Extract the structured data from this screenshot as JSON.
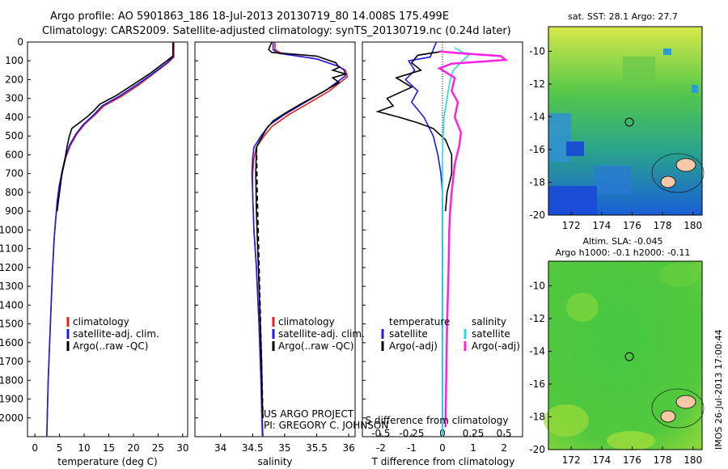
{
  "title_line1": "Argo profile: AO 5901863_186 18-Jul-2013 20130719_80 14.008S 175.499E",
  "title_line2": "Climatology: CARS2009. Satellite-adjusted climatology: synTS_20130719.nc (0.24d later)",
  "colors": {
    "red": "#e02020",
    "blue": "#1a1ae6",
    "black": "#000000",
    "magenta": "#ff20e0",
    "cyan": "#22dddd"
  },
  "chart_data": [
    {
      "type": "line",
      "name": "temperature-profile",
      "xlabel": "temperature (deg C)",
      "ylabel": "",
      "xlim": [
        -1.5,
        31
      ],
      "ylim": [
        2100,
        0
      ],
      "xticks": [
        "0",
        "5",
        "10",
        "15",
        "20",
        "25",
        "30"
      ],
      "xtick_values": [
        0,
        5,
        10,
        15,
        20,
        25,
        30
      ],
      "yticks": [
        "0",
        "100",
        "200",
        "300",
        "400",
        "500",
        "600",
        "700",
        "800",
        "900",
        "1000",
        "1100",
        "1200",
        "1300",
        "1400",
        "1500",
        "1600",
        "1700",
        "1800",
        "1900",
        "2000"
      ],
      "ytick_values": [
        0,
        100,
        200,
        300,
        400,
        500,
        600,
        700,
        800,
        900,
        1000,
        1100,
        1200,
        1300,
        1400,
        1500,
        1600,
        1700,
        1800,
        1900,
        2000
      ],
      "legend": [
        "climatology",
        "satellite-adj. clim.",
        "Argo(..raw -QC)"
      ],
      "series": [
        {
          "name": "climatology",
          "color": "red",
          "points": [
            [
              28.2,
              0
            ],
            [
              28.2,
              80
            ],
            [
              27,
              110
            ],
            [
              24,
              170
            ],
            [
              21,
              230
            ],
            [
              17.5,
              290
            ],
            [
              14,
              340
            ],
            [
              12.5,
              380
            ],
            [
              10,
              440
            ],
            [
              8.5,
              490
            ],
            [
              7.2,
              550
            ],
            [
              6.2,
              620
            ],
            [
              5.6,
              690
            ],
            [
              5,
              770
            ],
            [
              4.6,
              850
            ],
            [
              4.2,
              950
            ],
            [
              3.9,
              1050
            ],
            [
              3.6,
              1200
            ],
            [
              3.3,
              1400
            ],
            [
              3.0,
              1600
            ],
            [
              2.7,
              1800
            ],
            [
              2.5,
              2000
            ],
            [
              2.4,
              2100
            ]
          ]
        },
        {
          "name": "satellite-adj. clim.",
          "color": "blue",
          "points": [
            [
              28.0,
              0
            ],
            [
              28.0,
              80
            ],
            [
              26.8,
              110
            ],
            [
              23.8,
              170
            ],
            [
              20.5,
              230
            ],
            [
              17,
              290
            ],
            [
              13.6,
              340
            ],
            [
              12.2,
              380
            ],
            [
              9.8,
              440
            ],
            [
              8.3,
              490
            ],
            [
              7.0,
              550
            ],
            [
              6.1,
              620
            ],
            [
              5.5,
              690
            ],
            [
              4.9,
              770
            ],
            [
              4.5,
              850
            ],
            [
              4.2,
              950
            ],
            [
              3.9,
              1050
            ],
            [
              3.6,
              1200
            ],
            [
              3.3,
              1400
            ],
            [
              3.0,
              1600
            ],
            [
              2.7,
              1800
            ],
            [
              2.5,
              2000
            ],
            [
              2.4,
              2100
            ]
          ]
        },
        {
          "name": "Argo(..raw -QC)",
          "color": "black",
          "points": [
            [
              28.1,
              0
            ],
            [
              28.0,
              75
            ],
            [
              26.5,
              105
            ],
            [
              23.5,
              165
            ],
            [
              20,
              225
            ],
            [
              16.5,
              285
            ],
            [
              13.2,
              330
            ],
            [
              12,
              365
            ],
            [
              10.5,
              400
            ],
            [
              9,
              430
            ],
            [
              7.5,
              460
            ],
            [
              7,
              500
            ],
            [
              6.5,
              560
            ],
            [
              6,
              640
            ],
            [
              5.5,
              700
            ],
            [
              5.2,
              760
            ],
            [
              4.8,
              840
            ],
            [
              4.5,
              900
            ]
          ]
        }
      ]
    },
    {
      "type": "line",
      "name": "salinity-profile",
      "xlabel": "salinity",
      "xlim": [
        33.6,
        36.1
      ],
      "ylim": [
        2100,
        0
      ],
      "xticks": [
        "34",
        "34.5",
        "35",
        "35.5",
        "36"
      ],
      "xtick_values": [
        34,
        34.5,
        35,
        35.5,
        36
      ],
      "legend": [
        "climatology",
        "satellite-adj. clim.",
        "Argo(..raw -QC)"
      ],
      "annotation": [
        "US ARGO PROJECT",
        "PI: GREGORY C. JOHNSON"
      ],
      "series": [
        {
          "name": "climatology",
          "color": "red",
          "points": [
            [
              34.85,
              0
            ],
            [
              34.85,
              40
            ],
            [
              34.95,
              60
            ],
            [
              35.5,
              90
            ],
            [
              35.85,
              130
            ],
            [
              35.95,
              150
            ],
            [
              35.98,
              185
            ],
            [
              35.7,
              260
            ],
            [
              35.35,
              330
            ],
            [
              35.05,
              390
            ],
            [
              34.8,
              450
            ],
            [
              34.68,
              500
            ],
            [
              34.56,
              560
            ],
            [
              34.52,
              620
            ],
            [
              34.5,
              700
            ],
            [
              34.5,
              800
            ],
            [
              34.52,
              1000
            ],
            [
              34.56,
              1200
            ],
            [
              34.6,
              1500
            ],
            [
              34.63,
              1800
            ],
            [
              34.65,
              2100
            ]
          ]
        },
        {
          "name": "satellite-adj. clim.",
          "color": "blue",
          "points": [
            [
              34.82,
              0
            ],
            [
              34.82,
              40
            ],
            [
              34.9,
              60
            ],
            [
              35.5,
              90
            ],
            [
              35.85,
              130
            ],
            [
              35.93,
              150
            ],
            [
              35.95,
              180
            ],
            [
              35.65,
              255
            ],
            [
              35.3,
              325
            ],
            [
              35.0,
              385
            ],
            [
              34.75,
              445
            ],
            [
              34.63,
              500
            ],
            [
              34.52,
              560
            ],
            [
              34.5,
              620
            ],
            [
              34.49,
              700
            ],
            [
              34.5,
              800
            ],
            [
              34.52,
              1000
            ],
            [
              34.56,
              1200
            ],
            [
              34.6,
              1500
            ],
            [
              34.63,
              1800
            ],
            [
              34.66,
              2100
            ]
          ]
        },
        {
          "name": "Argo(..raw -QC)",
          "color": "black",
          "points": [
            [
              34.8,
              0
            ],
            [
              34.75,
              40
            ],
            [
              34.8,
              55
            ],
            [
              35.5,
              75
            ],
            [
              35.8,
              110
            ],
            [
              35.85,
              135
            ],
            [
              35.75,
              150
            ],
            [
              35.95,
              170
            ],
            [
              35.75,
              190
            ],
            [
              35.85,
              215
            ],
            [
              35.6,
              265
            ],
            [
              35.25,
              330
            ],
            [
              35.0,
              380
            ],
            [
              34.82,
              420
            ],
            [
              34.72,
              460
            ],
            [
              34.62,
              520
            ],
            [
              34.56,
              560
            ],
            [
              34.55,
              700
            ],
            [
              34.56,
              900
            ],
            [
              34.58,
              1100
            ],
            [
              34.6,
              1300
            ],
            [
              34.62,
              1500
            ],
            [
              34.64,
              1700
            ],
            [
              34.65,
              1900
            ],
            [
              34.66,
              2000
            ]
          ]
        }
      ]
    },
    {
      "type": "line",
      "name": "difference-profile",
      "xlabel": "T difference from climatology",
      "xlabel_top": "S difference from climatology",
      "xlim": [
        -2.6,
        2.6
      ],
      "ylim": [
        2100,
        0
      ],
      "xticks": [
        "-2",
        "-1",
        "0",
        "1",
        "2"
      ],
      "xtick_values": [
        -2,
        -1,
        0,
        1,
        2
      ],
      "sticks": [
        "-0.5",
        "-0.25",
        "0",
        "0.25",
        "0.5"
      ],
      "stick_values": [
        -0.5,
        -0.25,
        0,
        0.25,
        0.5
      ],
      "legend_headers": [
        "temperature",
        "salinity"
      ],
      "legend": [
        "satellite",
        "Argo(-adj)",
        "satellite",
        "Argo(-adj)"
      ],
      "series": [
        {
          "name": "T satellite",
          "color": "blue",
          "points": [
            [
              -0.2,
              0
            ],
            [
              -0.4,
              80
            ],
            [
              -1.1,
              100
            ],
            [
              -0.9,
              150
            ],
            [
              -1.2,
              200
            ],
            [
              -0.8,
              260
            ],
            [
              -1.0,
              320
            ],
            [
              -0.6,
              400
            ],
            [
              -0.3,
              500
            ],
            [
              -0.15,
              600
            ],
            [
              -0.05,
              700
            ],
            [
              0,
              800
            ],
            [
              0,
              1000
            ],
            [
              0,
              2100
            ]
          ]
        },
        {
          "name": "T Argo(-adj)",
          "color": "black",
          "points": [
            [
              0,
              50
            ],
            [
              -0.8,
              70
            ],
            [
              -1.0,
              110
            ],
            [
              -0.7,
              150
            ],
            [
              -1.5,
              190
            ],
            [
              -1.0,
              240
            ],
            [
              -1.8,
              300
            ],
            [
              -1.6,
              340
            ],
            [
              -2.1,
              370
            ],
            [
              -1.4,
              400
            ],
            [
              -0.8,
              430
            ],
            [
              -0.3,
              460
            ],
            [
              0.1,
              520
            ],
            [
              0.3,
              600
            ],
            [
              0.3,
              700
            ],
            [
              0.15,
              800
            ],
            [
              0.1,
              900
            ]
          ]
        },
        {
          "name": "S satellite",
          "color": "cyan",
          "points": [
            [
              0.4,
              30
            ],
            [
              0.6,
              50
            ],
            [
              0.85,
              70
            ],
            [
              0.65,
              100
            ],
            [
              0.35,
              150
            ],
            [
              0.25,
              200
            ],
            [
              0.15,
              300
            ],
            [
              0.05,
              400
            ],
            [
              0.02,
              500
            ],
            [
              0,
              600
            ],
            [
              0,
              800
            ],
            [
              0,
              1000
            ],
            [
              0,
              2100
            ]
          ]
        },
        {
          "name": "S Argo(-adj)",
          "color": "magenta",
          "points": [
            [
              -0.1,
              50
            ],
            [
              0.6,
              60
            ],
            [
              1.9,
              75
            ],
            [
              2.05,
              95
            ],
            [
              1.2,
              105
            ],
            [
              0.3,
              115
            ],
            [
              -0.1,
              140
            ],
            [
              0.4,
              190
            ],
            [
              0.3,
              260
            ],
            [
              0.5,
              320
            ],
            [
              0.4,
              400
            ],
            [
              0.6,
              480
            ],
            [
              0.55,
              550
            ],
            [
              0.4,
              650
            ],
            [
              0.3,
              800
            ],
            [
              0.25,
              900
            ],
            [
              0.22,
              1000
            ],
            [
              0.2,
              1200
            ],
            [
              0.15,
              1500
            ],
            [
              0.12,
              1800
            ],
            [
              0.1,
              2000
            ],
            [
              0.1,
              2050
            ]
          ]
        }
      ]
    },
    {
      "type": "heatmap",
      "name": "sst-map",
      "title": "sat. SST: 28.1  Argo: 27.7",
      "xlim": [
        170.5,
        180.6
      ],
      "ylim": [
        -20,
        -8.5
      ],
      "xticks": [
        "172",
        "174",
        "176",
        "178",
        "180"
      ],
      "xtick_values": [
        172,
        174,
        176,
        178,
        180
      ],
      "yticks": [
        "-10",
        "-12",
        "-14",
        "-16",
        "-18",
        "-20"
      ],
      "ytick_values": [
        -10,
        -12,
        -14,
        -16,
        -18,
        -20
      ],
      "marker": [
        175.5,
        -14
      ]
    },
    {
      "type": "heatmap",
      "name": "sla-map",
      "title": "Altim. SLA: -0.045",
      "subtitle": "Argo h1000: -0.1  h2000: -0.11",
      "xlim": [
        170.5,
        180.6
      ],
      "ylim": [
        -20,
        -8.5
      ],
      "xticks": [
        "172",
        "174",
        "176",
        "178",
        "180"
      ],
      "xtick_values": [
        172,
        174,
        176,
        178,
        180
      ],
      "yticks": [
        "-10",
        "-12",
        "-14",
        "-16",
        "-18",
        "-20"
      ],
      "ytick_values": [
        -10,
        -12,
        -14,
        -16,
        -18,
        -20
      ],
      "marker": [
        175.5,
        -14
      ]
    }
  ],
  "watermark": "IMOS 26-Jul-2013 17:00:44"
}
